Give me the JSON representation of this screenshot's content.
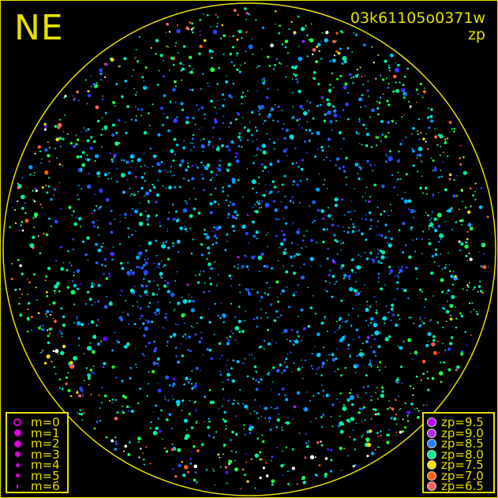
{
  "header": {
    "direction": "NE",
    "image_id": "03k61105o0371w",
    "metric": "zp"
  },
  "colors": {
    "frame": "#e6e000",
    "background": "#000000",
    "marker_m": "#e000e0"
  },
  "chart_data": {
    "type": "scatter",
    "title": "03k61105o0371w",
    "subtitle": "zp",
    "grid": false,
    "size_legend": {
      "placement": "bottom-left",
      "entries": [
        {
          "label": "m=0",
          "symbol": "open-circle"
        },
        {
          "label": "m=1",
          "symbol": "dot-large"
        },
        {
          "label": "m=2",
          "symbol": "dot-large"
        },
        {
          "label": "m=3",
          "symbol": "dot-medium"
        },
        {
          "label": "m=4",
          "symbol": "dot-small"
        },
        {
          "label": "m=5",
          "symbol": "dot-small"
        },
        {
          "label": "m=6",
          "symbol": "dot-tiny"
        }
      ]
    },
    "color_legend": {
      "placement": "bottom-right",
      "entries": [
        {
          "label": "zp=9.5",
          "color": "#c000f0"
        },
        {
          "label": "zp=9.0",
          "color": "#b030e0"
        },
        {
          "label": "zp=8.5",
          "color": "#2080ff"
        },
        {
          "label": "zp=8.0",
          "color": "#00f090"
        },
        {
          "label": "zp=7.5",
          "color": "#ffe000"
        },
        {
          "label": "zp=7.0",
          "color": "#ff6010"
        },
        {
          "label": "zp=6.5",
          "color": "#ff6060"
        }
      ]
    }
  }
}
